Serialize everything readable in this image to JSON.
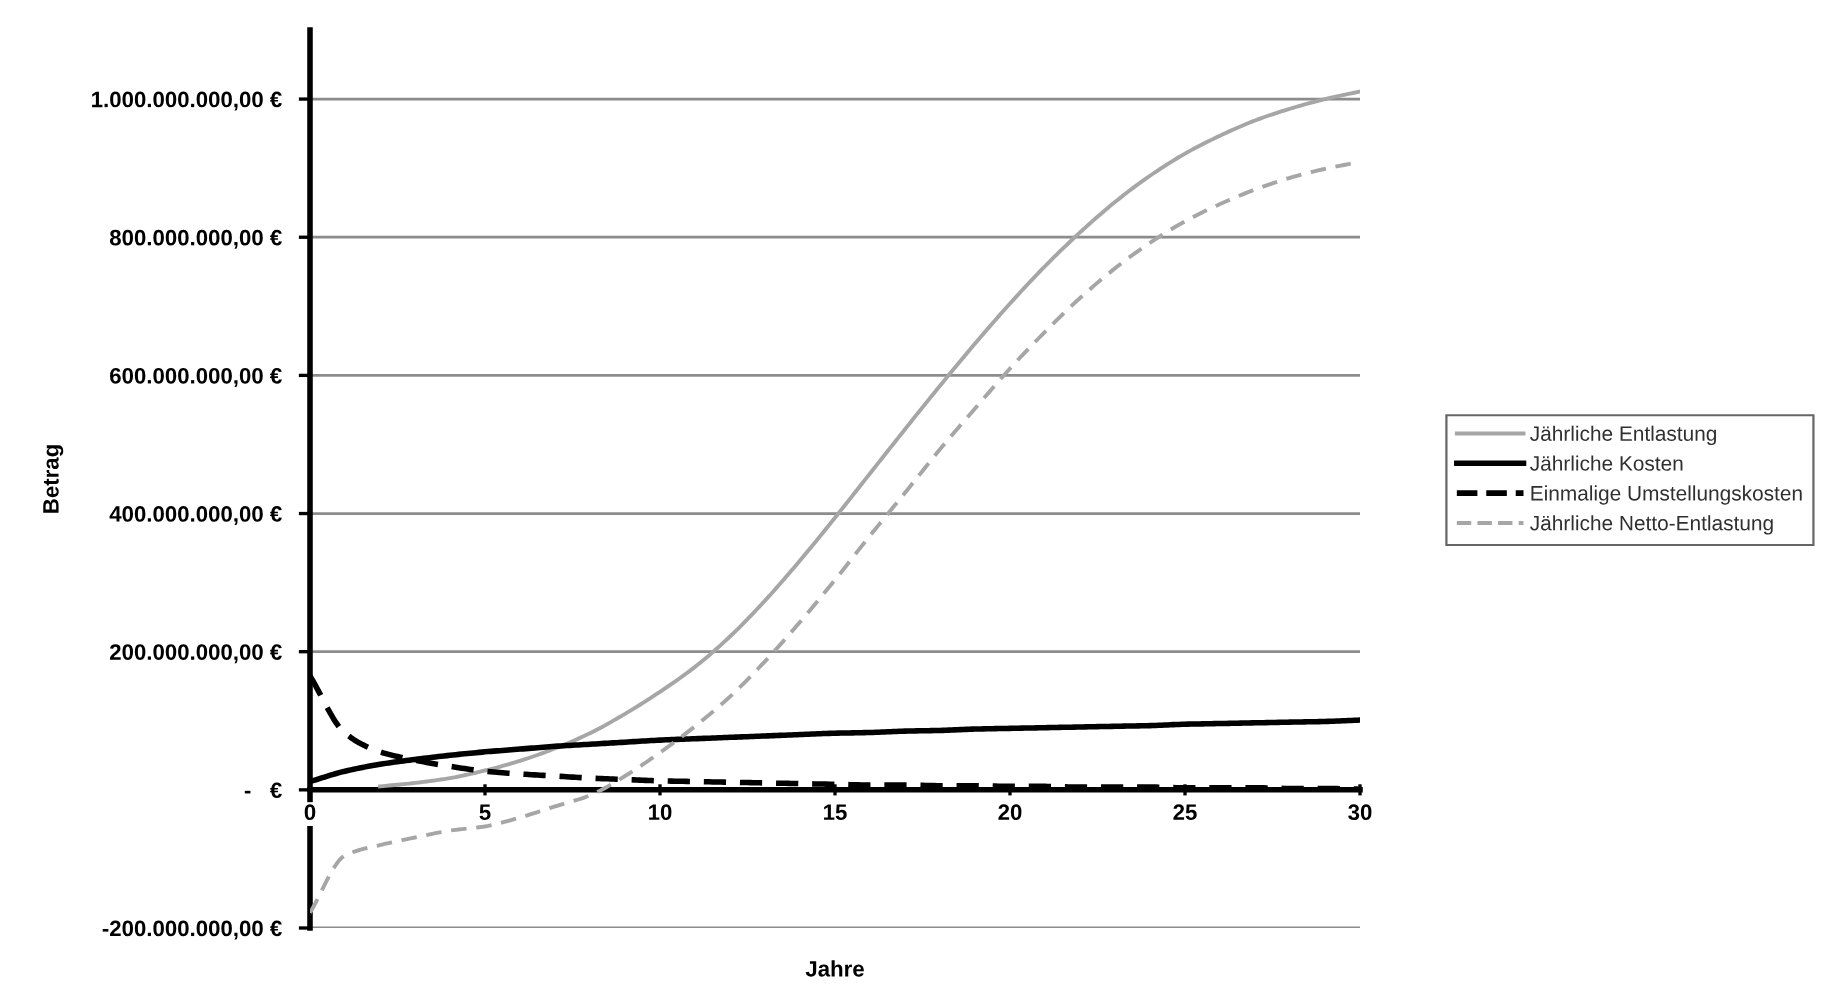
{
  "chart_data": {
    "type": "line",
    "xlabel": "Jahre",
    "ylabel": "Betrag",
    "x": [
      0,
      1,
      2,
      3,
      4,
      5,
      6,
      7,
      8,
      9,
      10,
      11,
      12,
      13,
      14,
      15,
      16,
      17,
      18,
      19,
      20,
      21,
      22,
      23,
      24,
      25,
      26,
      27,
      28,
      29,
      30
    ],
    "series": [
      {
        "name": "Jährliche Entlastung",
        "color": "#a6a6a6",
        "line_style": "solid",
        "values": [
          null,
          null,
          5000000,
          10000000,
          17000000,
          28000000,
          42000000,
          60000000,
          82000000,
          110000000,
          142000000,
          178000000,
          222000000,
          274000000,
          332000000,
          394000000,
          458000000,
          522000000,
          585000000,
          646000000,
          704000000,
          758000000,
          807000000,
          851000000,
          889000000,
          921000000,
          947000000,
          969000000,
          986000000,
          1000000000,
          1011000000
        ]
      },
      {
        "name": "Jährliche Kosten",
        "color": "#000000",
        "line_style": "solid",
        "values": [
          12000000,
          27000000,
          37000000,
          44000000,
          50000000,
          55000000,
          59000000,
          63000000,
          66000000,
          69000000,
          72000000,
          74000000,
          76000000,
          78000000,
          80000000,
          82000000,
          83000000,
          85000000,
          86000000,
          88000000,
          89000000,
          90000000,
          91000000,
          92000000,
          93000000,
          95000000,
          96000000,
          97000000,
          98000000,
          99000000,
          101000000
        ]
      },
      {
        "name": "Einmalige Umstellungskosten",
        "color": "#000000",
        "line_style": "dashed",
        "values": [
          165000000,
          82000000,
          55000000,
          43000000,
          34000000,
          27000000,
          23000000,
          20000000,
          17000000,
          15000000,
          13000000,
          12000000,
          11000000,
          10000000,
          9000000,
          8000000,
          7000000,
          7000000,
          6000000,
          6000000,
          5000000,
          5000000,
          4000000,
          4000000,
          4000000,
          3000000,
          3000000,
          3000000,
          2000000,
          2000000,
          1000000
        ]
      },
      {
        "name": "Jährliche Netto-Entlastung",
        "color": "#a6a6a6",
        "line_style": "dashed",
        "values": [
          -178000000,
          -95000000,
          -80000000,
          -69000000,
          -59000000,
          -53000000,
          -40000000,
          -24000000,
          -8000000,
          20000000,
          54000000,
          92000000,
          135000000,
          186000000,
          243000000,
          304000000,
          368000000,
          430000000,
          493000000,
          552000000,
          610000000,
          663000000,
          712000000,
          755000000,
          792000000,
          823000000,
          848000000,
          869000000,
          886000000,
          899000000,
          909000000
        ]
      }
    ],
    "xlim": [
      0,
      30
    ],
    "xticks": [
      0,
      5,
      10,
      15,
      20,
      25,
      30
    ],
    "ylim": [
      -200000000,
      1100000000
    ],
    "yticks": [
      {
        "value": -200000000,
        "label": "-200.000.000,00 €"
      },
      {
        "value": 0,
        "label": "-   €"
      },
      {
        "value": 200000000,
        "label": "200.000.000,00 €"
      },
      {
        "value": 400000000,
        "label": "400.000.000,00 €"
      },
      {
        "value": 600000000,
        "label": "600.000.000,00 €"
      },
      {
        "value": 800000000,
        "label": "800.000.000,00 €"
      },
      {
        "value": 1000000000,
        "label": "1.000.000.000,00 €"
      }
    ],
    "grid": "y",
    "legend": "right",
    "marker": "none"
  }
}
